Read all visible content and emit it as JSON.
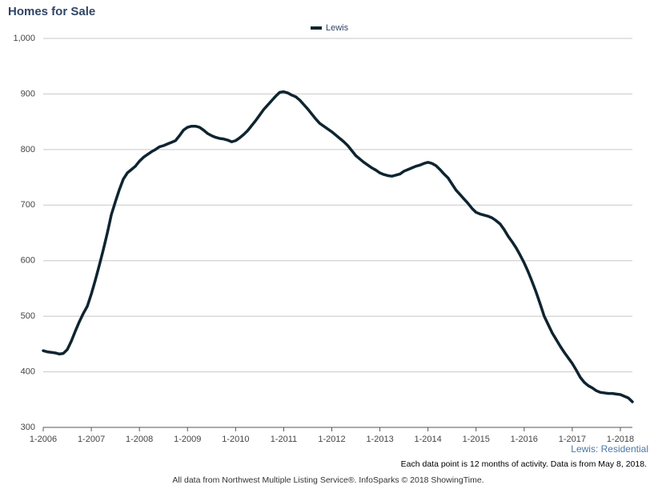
{
  "chart_data": {
    "type": "line",
    "title": "Homes for Sale",
    "annotation": "Lewis: Residential",
    "footnote": "Each data point is 12 months of activity. Data is from May 8, 2018.",
    "source": "All data from Northwest Multiple Listing Service®. InfoSparks © 2018 ShowingTime.",
    "categories": [
      "1-2006",
      null,
      null,
      null,
      null,
      null,
      null,
      null,
      null,
      null,
      null,
      null,
      "1-2007",
      null,
      null,
      null,
      null,
      null,
      null,
      null,
      null,
      null,
      null,
      null,
      "1-2008",
      null,
      null,
      null,
      null,
      null,
      null,
      null,
      null,
      null,
      null,
      null,
      "1-2009",
      null,
      null,
      null,
      null,
      null,
      null,
      null,
      null,
      null,
      null,
      null,
      "1-2010",
      null,
      null,
      null,
      null,
      null,
      null,
      null,
      null,
      null,
      null,
      null,
      "1-2011",
      null,
      null,
      null,
      null,
      null,
      null,
      null,
      null,
      null,
      null,
      null,
      "1-2012",
      null,
      null,
      null,
      null,
      null,
      null,
      null,
      null,
      null,
      null,
      null,
      "1-2013",
      null,
      null,
      null,
      null,
      null,
      null,
      null,
      null,
      null,
      null,
      null,
      "1-2014",
      null,
      null,
      null,
      null,
      null,
      null,
      null,
      null,
      null,
      null,
      null,
      "1-2015",
      null,
      null,
      null,
      null,
      null,
      null,
      null,
      null,
      null,
      null,
      null,
      "1-2016",
      null,
      null,
      null,
      null,
      null,
      null,
      null,
      null,
      null,
      null,
      null,
      "1-2017",
      null,
      null,
      null,
      null,
      null,
      null,
      null,
      null,
      null,
      null,
      null,
      "1-2018",
      null,
      null,
      null
    ],
    "series": [
      {
        "name": "Lewis",
        "color": "#0e2430",
        "values": [
          438,
          436,
          435,
          434,
          432,
          433,
          440,
          455,
          473,
          490,
          505,
          518,
          540,
          565,
          592,
          620,
          650,
          683,
          706,
          728,
          747,
          758,
          764,
          770,
          779,
          786,
          791,
          796,
          800,
          805,
          807,
          810,
          813,
          816,
          825,
          835,
          840,
          842,
          842,
          840,
          835,
          829,
          825,
          822,
          820,
          819,
          817,
          814,
          816,
          821,
          827,
          834,
          843,
          852,
          862,
          872,
          880,
          888,
          896,
          903,
          904,
          902,
          898,
          895,
          889,
          881,
          873,
          864,
          855,
          847,
          842,
          837,
          832,
          826,
          820,
          814,
          807,
          798,
          789,
          783,
          777,
          772,
          767,
          763,
          758,
          755,
          753,
          752,
          754,
          756,
          761,
          764,
          767,
          770,
          772,
          775,
          777,
          775,
          771,
          764,
          756,
          749,
          738,
          727,
          719,
          711,
          703,
          694,
          687,
          684,
          682,
          680,
          677,
          672,
          666,
          656,
          644,
          634,
          623,
          610,
          596,
          580,
          562,
          543,
          522,
          500,
          485,
          470,
          458,
          446,
          435,
          425,
          415,
          403,
          390,
          381,
          375,
          371,
          366,
          363,
          362,
          361,
          361,
          360,
          359,
          356,
          353,
          346
        ]
      }
    ],
    "ylim": [
      300,
      1000
    ],
    "yticks": [
      300,
      400,
      500,
      600,
      700,
      800,
      900,
      {
        "value": 1000,
        "label": "1,000"
      }
    ],
    "grid": true
  }
}
